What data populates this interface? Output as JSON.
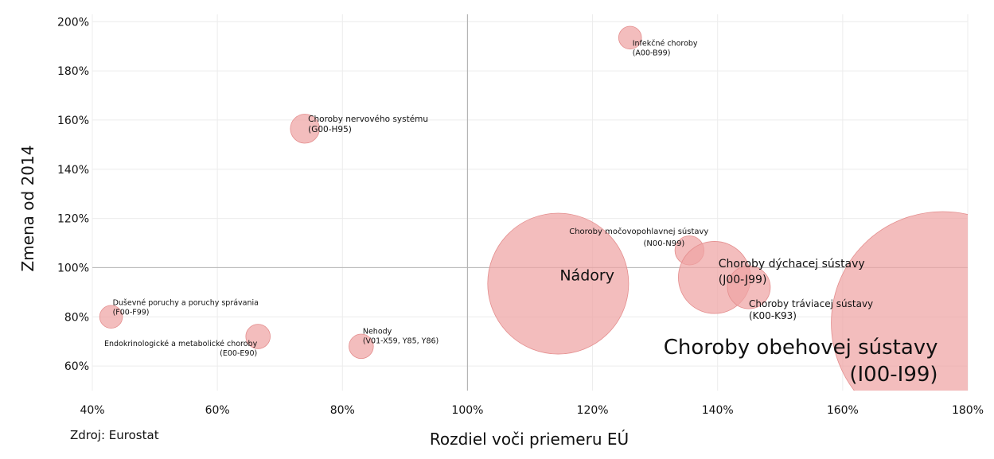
{
  "source": "Zdroj: Eurostat",
  "colors": {
    "bubble_fill": "#eea4a4",
    "bubble_stroke": "#e48e8e",
    "grid": "#ececec",
    "ref_line": "#b5b5b5"
  },
  "chart_data": {
    "type": "scatter",
    "bubble": true,
    "xlabel": "Rozdiel voči priemeru EÚ",
    "ylabel": "Zmena od 2014",
    "xlim": [
      40,
      180
    ],
    "ylim": [
      50,
      203
    ],
    "x_ticks": [
      "40%",
      "60%",
      "80%",
      "100%",
      "120%",
      "140%",
      "160%",
      "180%"
    ],
    "x_tick_values": [
      40,
      60,
      80,
      100,
      120,
      140,
      160,
      180
    ],
    "y_ticks": [
      "60%",
      "80%",
      "100%",
      "120%",
      "140%",
      "160%",
      "180%",
      "200%"
    ],
    "y_tick_values": [
      60,
      80,
      100,
      120,
      140,
      160,
      180,
      200
    ],
    "reference_lines": {
      "x": 100,
      "y": 100
    },
    "grid": true,
    "points": [
      {
        "label": [
          "Infekčné choroby",
          "(A00-B99)"
        ],
        "x": 126,
        "y": 193.5,
        "size": 2.1
      },
      {
        "label": [
          "Choroby nervového systému",
          "(G00-H95)"
        ],
        "x": 74,
        "y": 156.5,
        "size": 3.4
      },
      {
        "label": [
          "Choroby močovopohlavnej sústavy",
          "(N00-N99)"
        ],
        "x": 135.5,
        "y": 107,
        "size": 3.4
      },
      {
        "label": [
          "Nádory"
        ],
        "x": 114.5,
        "y": 93.5,
        "size": 80
      },
      {
        "label": [
          "Choroby dýchacej sústavy",
          "(J00-J99)"
        ],
        "x": 139.5,
        "y": 96,
        "size": 21
      },
      {
        "label": [
          "Choroby tráviacej sústavy",
          "(K00-K93)"
        ],
        "x": 145,
        "y": 92,
        "size": 7.4
      },
      {
        "label": [
          "Choroby obehovej sústavy",
          "(I00-I99)"
        ],
        "x": 176,
        "y": 77.5,
        "size": 200
      },
      {
        "label": [
          "Duševné poruchy a poruchy správania",
          "(F00-F99)"
        ],
        "x": 43,
        "y": 80,
        "size": 2.1
      },
      {
        "label": [
          "Endokrinologické a metabolické choroby",
          "(E00-E90)"
        ],
        "x": 66.5,
        "y": 72,
        "size": 2.4
      },
      {
        "label": [
          "Nehody",
          "(V01-X59, Y85, Y86)"
        ],
        "x": 83,
        "y": 68,
        "size": 2.4
      }
    ]
  }
}
